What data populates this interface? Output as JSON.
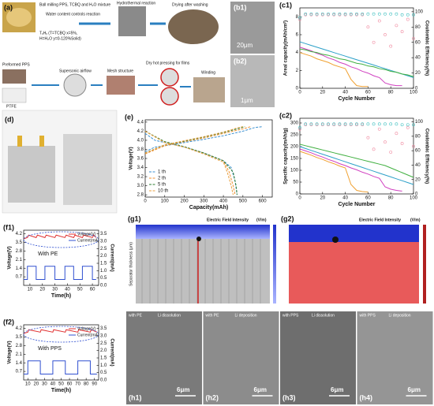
{
  "panel_a": {
    "label": "(a)",
    "step1": "Ball milling PPS, TCBQ and H₂O mixture",
    "step2": "Water content controls reaction",
    "formula1": "TₓHᵧ (T=TCBQ x=5%,",
    "formula2": "H=H₂O y=0-120%Solid)",
    "step3": "Hydrothermal reaction",
    "step4": "Drying after washing",
    "step5": "Preformed PPS",
    "step6": "PTFE",
    "step7": "Supersonic airflow",
    "step8": "Mesh structure",
    "step9": "Dry hot pressing for films",
    "step10": "Winding"
  },
  "panel_b": {
    "b1": "(b1)",
    "scale1": "20μm",
    "b2": "(b2)",
    "scale2": "1μm"
  },
  "panel_d": {
    "label": "(d)"
  },
  "panel_g": {
    "g1": "(g1)",
    "g2": "(g2)",
    "title1": "Electric Field Intensity",
    "unit1": "(V/m)",
    "title2": "Electric Field Intensity",
    "unit2": "(V/m)",
    "ylabel": "Separator thickness (μm)"
  },
  "panel_h": {
    "items": [
      {
        "label": "(h1)",
        "sep": "with PE",
        "process": "Li dissolution",
        "scale": "6μm"
      },
      {
        "label": "(h2)",
        "sep": "with PE",
        "process": "Li deposition",
        "scale": "6μm"
      },
      {
        "label": "(h3)",
        "sep": "with PPS",
        "process": "Li dissolution",
        "scale": "6μm"
      },
      {
        "label": "(h4)",
        "sep": "with PPS",
        "process": "Li deposition",
        "scale": "6μm"
      }
    ]
  },
  "chart_data": [
    {
      "type": "line",
      "label": "(c1)",
      "xlabel": "Cycle Number",
      "ylabel": "Areal capacity(mAh/cm²)",
      "y2label": "Coulombic Efficiency(%)",
      "x": [
        0,
        5,
        10,
        15,
        20,
        25,
        30,
        35,
        40,
        45,
        50,
        55,
        60,
        65,
        70,
        75,
        80,
        85,
        90,
        95,
        100
      ],
      "xlim": [
        0,
        100
      ],
      "xticks": [
        0,
        20,
        40,
        60,
        80,
        100
      ],
      "ylim": [
        0,
        9
      ],
      "yticks": [
        0,
        2,
        4,
        6,
        8
      ],
      "y2lim": [
        0,
        105
      ],
      "y2ticks": [
        0,
        20,
        40,
        60,
        80,
        100
      ],
      "series": [
        {
          "color": "#2ca0c8",
          "values": [
            5.2,
            5.0,
            4.8,
            4.6,
            4.4,
            4.2,
            4.0,
            3.8,
            3.6,
            3.4,
            3.2,
            3.0,
            2.8,
            2.6,
            2.4,
            2.2,
            2.0,
            1.8,
            1.6,
            1.4,
            1.2
          ]
        },
        {
          "color": "#f0a030",
          "values": [
            4.0,
            3.8,
            3.6,
            3.3,
            3.1,
            2.9,
            2.6,
            2.4,
            2.2,
            1.0,
            0.3,
            0.2,
            0.2,
            null,
            null,
            null,
            null,
            null,
            null,
            null,
            null
          ]
        },
        {
          "color": "#d040c0",
          "values": [
            4.6,
            4.4,
            4.2,
            3.9,
            3.7,
            3.4,
            3.2,
            2.9,
            2.7,
            2.4,
            2.2,
            1.9,
            1.7,
            1.4,
            1.2,
            0.6,
            0.4,
            0.3,
            0.3,
            null,
            null
          ]
        },
        {
          "color": "#40b040",
          "values": [
            4.4,
            4.3,
            4.1,
            4.0,
            3.8,
            3.7,
            3.5,
            3.3,
            3.2,
            3.0,
            2.8,
            2.7,
            2.5,
            2.4,
            2.2,
            2.1,
            1.9,
            1.8,
            1.6,
            1.5,
            1.3
          ]
        },
        {
          "color": "#f08aa0",
          "axis": "y2",
          "style": "markers",
          "values": [
            90,
            96,
            96,
            96,
            96,
            96,
            96,
            96,
            96,
            96,
            96,
            96,
            80,
            60,
            88,
            70,
            55,
            82,
            74,
            90,
            65
          ]
        },
        {
          "color": "#40c0c0",
          "axis": "y2",
          "style": "markers",
          "values": [
            92,
            97,
            97,
            97,
            97,
            97,
            97,
            97,
            97,
            97,
            97,
            97,
            97,
            97,
            97,
            97,
            97,
            97,
            96,
            96,
            96
          ]
        }
      ]
    },
    {
      "type": "line",
      "label": "(c2)",
      "xlabel": "Cycle Number",
      "ylabel": "Specific capacity(mAh/g)",
      "y2label": "Coulombic Efficiency(%)",
      "x": [
        0,
        5,
        10,
        15,
        20,
        25,
        30,
        35,
        40,
        45,
        50,
        55,
        60,
        65,
        70,
        75,
        80,
        85,
        90,
        95,
        100
      ],
      "xlim": [
        0,
        100
      ],
      "xticks": [
        0,
        20,
        40,
        60,
        80,
        100
      ],
      "ylim": [
        0,
        320
      ],
      "yticks": [
        0,
        50,
        100,
        150,
        200,
        250,
        300
      ],
      "y2lim": [
        0,
        105
      ],
      "y2ticks": [
        0,
        20,
        40,
        60,
        80,
        100
      ],
      "series": [
        {
          "color": "#2ca0c8",
          "values": [
            200,
            192,
            184,
            176,
            168,
            160,
            152,
            144,
            136,
            128,
            120,
            112,
            104,
            96,
            88,
            80,
            72,
            64,
            56,
            48,
            40
          ]
        },
        {
          "color": "#f0a030",
          "values": [
            180,
            172,
            164,
            154,
            146,
            136,
            128,
            118,
            110,
            40,
            15,
            10,
            8,
            null,
            null,
            null,
            null,
            null,
            null,
            null,
            null
          ]
        },
        {
          "color": "#d040c0",
          "values": [
            190,
            182,
            174,
            164,
            156,
            146,
            138,
            128,
            120,
            110,
            102,
            92,
            84,
            74,
            66,
            30,
            20,
            15,
            12,
            null,
            null
          ]
        },
        {
          "color": "#40b040",
          "values": [
            210,
            204,
            198,
            192,
            186,
            180,
            174,
            168,
            162,
            156,
            150,
            144,
            138,
            132,
            126,
            120,
            110,
            100,
            90,
            80,
            70
          ]
        },
        {
          "color": "#f08aa0",
          "axis": "y2",
          "style": "markers",
          "values": [
            90,
            96,
            96,
            96,
            96,
            96,
            96,
            96,
            96,
            96,
            96,
            96,
            78,
            62,
            90,
            72,
            58,
            84,
            70,
            92,
            66
          ]
        },
        {
          "color": "#40c0c0",
          "axis": "y2",
          "style": "markers",
          "values": [
            92,
            97,
            97,
            97,
            97,
            97,
            97,
            97,
            97,
            97,
            97,
            97,
            97,
            97,
            97,
            97,
            97,
            97,
            96,
            96,
            96
          ]
        }
      ]
    },
    {
      "type": "line",
      "label": "(e)",
      "xlabel": "Capacity(mAh)",
      "ylabel": "Voltage(V)",
      "legend": "lower left",
      "xlim": [
        0,
        650
      ],
      "xticks": [
        0,
        100,
        200,
        300,
        400,
        500,
        600
      ],
      "ylim": [
        2.75,
        4.45
      ],
      "yticks": [
        2.8,
        {
          "value": 3,
          "label": "3.0"
        },
        3.2,
        3.4,
        3.6,
        3.8,
        {
          "value": 4,
          "label": "4.0"
        },
        4.2,
        4.4
      ],
      "series": [
        {
          "name": "1 th",
          "color": "#3a8fd0",
          "dash": true,
          "x": [
            0,
            50,
            100,
            200,
            300,
            400,
            440,
            460,
            470
          ],
          "values": [
            4.15,
            4.0,
            3.95,
            3.85,
            3.72,
            3.55,
            3.4,
            3.1,
            2.8
          ]
        },
        {
          "name": "2 th",
          "color": "#f09030",
          "dash": true,
          "x": [
            0,
            100,
            200,
            300,
            400,
            430,
            450,
            460
          ],
          "values": [
            4.2,
            3.95,
            3.85,
            3.72,
            3.55,
            3.3,
            3.0,
            2.8
          ]
        },
        {
          "name": "5 th",
          "color": "#2e7d32",
          "dash": true,
          "x": [
            0,
            100,
            200,
            300,
            400,
            450,
            465,
            470
          ],
          "values": [
            4.2,
            3.97,
            3.86,
            3.72,
            3.55,
            3.3,
            3.0,
            2.8
          ]
        },
        {
          "name": "10 th",
          "color": "#e8a040",
          "dash": true,
          "x": [
            0,
            100,
            200,
            300,
            400,
            420,
            440,
            450
          ],
          "values": [
            4.2,
            3.95,
            3.85,
            3.7,
            3.52,
            3.3,
            3.0,
            2.8
          ]
        },
        {
          "color": "#3a8fd0",
          "dash": true,
          "x": [
            0,
            50,
            100,
            200,
            300,
            400,
            500,
            560,
            600
          ],
          "values": [
            3.75,
            3.85,
            3.88,
            3.95,
            4.02,
            4.1,
            4.2,
            4.28,
            4.3
          ]
        },
        {
          "color": "#f09030",
          "dash": true,
          "x": [
            0,
            100,
            200,
            300,
            400,
            500,
            540
          ],
          "values": [
            3.7,
            3.88,
            3.97,
            4.05,
            4.15,
            4.25,
            4.3
          ]
        },
        {
          "color": "#2e7d32",
          "dash": true,
          "x": [
            0,
            100,
            200,
            300,
            400,
            480,
            510
          ],
          "values": [
            3.72,
            3.9,
            3.98,
            4.07,
            4.17,
            4.26,
            4.3
          ]
        },
        {
          "color": "#e8a040",
          "dash": true,
          "x": [
            0,
            100,
            200,
            300,
            400,
            470,
            500
          ],
          "values": [
            3.72,
            3.9,
            3.99,
            4.08,
            4.18,
            4.27,
            4.3
          ]
        }
      ]
    },
    {
      "type": "line",
      "label": "(f1)",
      "xlabel": "Time(h)",
      "ylabel": "Voltage(V)",
      "y2label": "Current(mA)",
      "annotation": "With PE",
      "legend": "upper right",
      "xlim": [
        5,
        65
      ],
      "xticks": [
        10,
        20,
        30,
        40,
        50,
        60
      ],
      "ylim": [
        0,
        4.5
      ],
      "yticks": [
        0.7,
        1.4,
        2.1,
        2.8,
        3.5,
        4.2
      ],
      "y2lim": [
        0,
        3.75
      ],
      "y2ticks": [
        {
          "value": 0,
          "label": "0.0"
        },
        0.5,
        {
          "value": 1,
          "label": "1.0"
        },
        1.5,
        {
          "value": 2,
          "label": "2.0"
        },
        2.5,
        {
          "value": 3,
          "label": "3.0"
        },
        3.5
      ],
      "series": [
        {
          "name": "Voltage(V)",
          "color": "#e03030",
          "x": [
            5,
            8,
            9,
            15,
            16,
            22,
            23,
            30,
            31,
            38,
            39,
            45,
            46,
            52,
            53,
            60,
            61,
            63
          ],
          "values": [
            3.8,
            3.9,
            4.1,
            3.9,
            4.1,
            3.9,
            4.1,
            3.9,
            4.1,
            3.9,
            4.1,
            3.9,
            4.1,
            3.9,
            4.1,
            3.9,
            4.1,
            3.9
          ]
        },
        {
          "name": "Current(mA)",
          "color": "#3050d0",
          "axis": "y2",
          "x": [
            5,
            8,
            8,
            15,
            15,
            22,
            22,
            30,
            30,
            38,
            38,
            45,
            45,
            52,
            52,
            60,
            60,
            63
          ],
          "values": [
            0.4,
            0.4,
            1.3,
            1.3,
            0.4,
            0.4,
            1.3,
            1.3,
            0.4,
            0.4,
            1.3,
            1.3,
            0.4,
            0.4,
            1.3,
            1.3,
            0.4,
            0.4
          ]
        }
      ]
    },
    {
      "type": "line",
      "label": "(f2)",
      "xlabel": "Time(h)",
      "ylabel": "Voltage(V)",
      "y2label": "Current(mA)",
      "annotation": "With PPS",
      "legend": "upper right",
      "xlim": [
        5,
        95
      ],
      "xticks": [
        10,
        20,
        30,
        40,
        50,
        60,
        70,
        80,
        90
      ],
      "ylim": [
        0,
        4.5
      ],
      "yticks": [
        0.7,
        1.4,
        2.1,
        2.8,
        3.5,
        4.2
      ],
      "y2lim": [
        0,
        3.75
      ],
      "y2ticks": [
        {
          "value": 0,
          "label": "0.0"
        },
        0.5,
        {
          "value": 1,
          "label": "1.0"
        },
        1.5,
        {
          "value": 2,
          "label": "2.0"
        },
        2.5,
        {
          "value": 3,
          "label": "3.0"
        },
        3.5
      ],
      "series": [
        {
          "name": "Voltage(V)",
          "color": "#e03030",
          "x": [
            5,
            10,
            11,
            25,
            26,
            40,
            41,
            55,
            56,
            70,
            71,
            85,
            86,
            93
          ],
          "values": [
            3.8,
            3.9,
            4.1,
            3.9,
            4.1,
            3.9,
            4.1,
            3.9,
            4.1,
            3.9,
            4.1,
            3.9,
            4.1,
            3.9
          ]
        },
        {
          "name": "Current(mA)",
          "color": "#3050d0",
          "axis": "y2",
          "x": [
            5,
            10,
            10,
            25,
            25,
            40,
            40,
            55,
            55,
            70,
            70,
            85,
            85,
            93
          ],
          "values": [
            0.4,
            0.4,
            1.3,
            1.3,
            0.4,
            0.4,
            1.3,
            1.3,
            0.4,
            0.4,
            1.3,
            1.3,
            0.4,
            0.4
          ]
        }
      ]
    }
  ]
}
